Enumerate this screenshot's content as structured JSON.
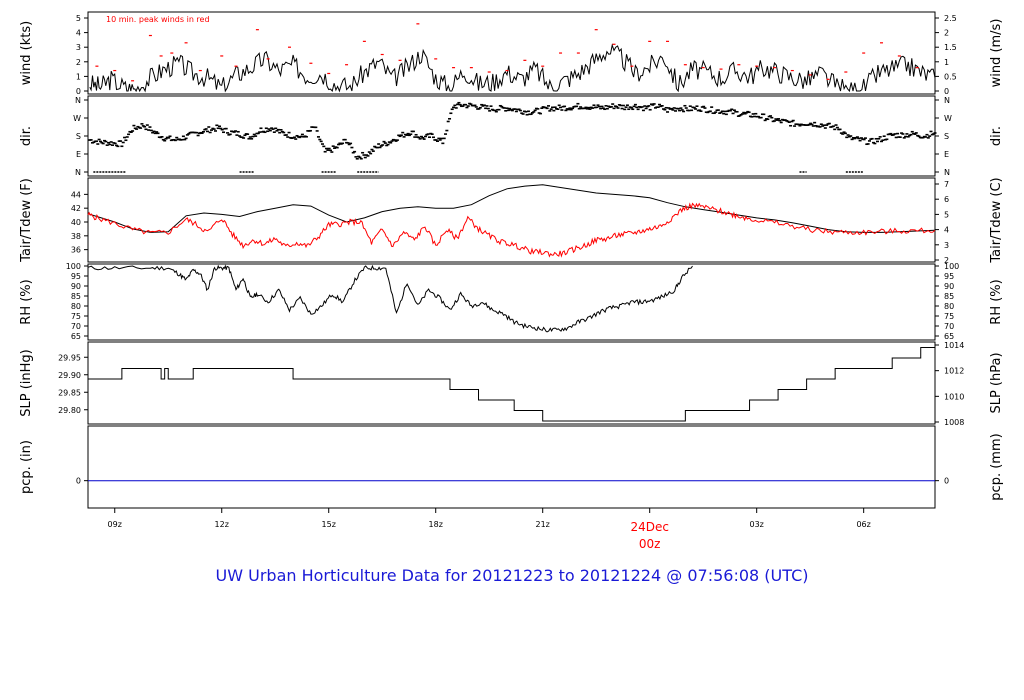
{
  "title": "UW Urban Horticulture Data for 20121223  to  20121224 @ 07:56:08  (UTC)",
  "colors": {
    "black": "#000000",
    "red": "#ff0000",
    "blue": "#0000cc",
    "title": "#1a1ad6"
  },
  "chart_data": {
    "type": "line",
    "x_axis": {
      "ticks": [
        "09z",
        "12z",
        "15z",
        "18z",
        "21z",
        "24Dec",
        "00z",
        "03z",
        "06z"
      ],
      "date_label": "24Dec",
      "date_sublabel": "00z",
      "range_hours": [
        8.25,
        32.0
      ]
    },
    "panels": [
      {
        "key": "wind",
        "ylabel_left": "wind (kts)",
        "ylabel_right": "wind (m/s)",
        "left_ticks": [
          "0",
          "1",
          "2",
          "3",
          "4",
          "5"
        ],
        "right_ticks": [
          "0",
          "0.5",
          "1",
          "1.5",
          "2",
          "2.5"
        ],
        "ylim": [
          0,
          5
        ],
        "annotation": "10 min. peak winds in red",
        "series": [
          {
            "color": "black",
            "x": [
              8.3,
              8.6,
              8.9,
              9.3,
              9.6,
              10.0,
              10.4,
              10.8,
              11.2,
              11.6,
              12.0,
              12.4,
              12.8,
              13.2,
              13.6,
              14.0,
              14.4,
              14.8,
              15.2,
              15.6,
              16.0,
              16.4,
              16.8,
              17.2,
              17.6,
              18.0,
              18.4,
              18.8,
              19.2,
              19.6,
              20.0,
              20.4,
              20.8,
              21.2,
              21.6,
              22.0,
              22.4,
              22.8,
              23.2,
              23.6,
              24.0,
              24.4,
              24.8,
              25.2,
              25.6,
              26.0,
              26.4,
              26.8,
              27.2,
              27.6,
              28.0,
              28.4,
              28.8,
              29.2,
              29.6,
              30.0,
              30.4,
              30.8,
              31.2,
              31.6,
              32.0
            ],
            "y": [
              0.5,
              0.3,
              0.8,
              0.2,
              0.1,
              0.9,
              1.5,
              1.9,
              1.2,
              0.9,
              0.2,
              1.1,
              1.6,
              2.2,
              1.4,
              1.8,
              1.0,
              1.2,
              0.4,
              0.3,
              1.3,
              2.0,
              0.8,
              1.6,
              2.6,
              0.9,
              0.2,
              1.4,
              0.5,
              0.6,
              1.3,
              0.8,
              1.5,
              0.3,
              0.7,
              1.2,
              2.0,
              2.8,
              2.3,
              1.2,
              1.7,
              2.4,
              0.4,
              1.5,
              1.3,
              0.9,
              1.4,
              1.0,
              1.6,
              1.3,
              0.9,
              0.7,
              1.2,
              0.4,
              0.0,
              0.2,
              1.2,
              1.5,
              1.8,
              1.3,
              0.9
            ]
          },
          {
            "color": "red",
            "label": "10 min. peak winds",
            "x": [
              8.5,
              9.0,
              9.5,
              10.0,
              10.3,
              10.6,
              11.0,
              11.4,
              12.0,
              12.4,
              13.0,
              13.3,
              13.9,
              14.5,
              15.0,
              15.5,
              16.0,
              16.5,
              17.0,
              17.5,
              18.0,
              18.5,
              19.0,
              19.5,
              20.0,
              20.5,
              21.0,
              21.5,
              22.0,
              22.5,
              23.0,
              23.5,
              24.0,
              24.5,
              25.0,
              25.5,
              26.0,
              26.5,
              27.0,
              27.5,
              28.0,
              28.5,
              29.0,
              29.5,
              30.0,
              30.5,
              31.0,
              31.5
            ],
            "y": [
              1.7,
              1.4,
              0.7,
              3.8,
              2.4,
              2.6,
              3.3,
              1.4,
              2.4,
              1.7,
              4.2,
              2.2,
              3.0,
              1.9,
              1.2,
              1.8,
              3.4,
              2.5,
              2.1,
              4.6,
              2.2,
              1.6,
              1.6,
              1.3,
              1.4,
              2.1,
              1.7,
              2.6,
              2.6,
              4.2,
              3.2,
              1.7,
              3.4,
              3.4,
              1.8,
              1.6,
              1.5,
              1.8,
              1.7,
              1.6,
              1.4,
              1.1,
              0.8,
              1.3,
              2.6,
              3.3,
              2.4,
              1.6
            ]
          }
        ]
      },
      {
        "key": "dir",
        "ylabel_left": "dir.",
        "ylabel_right": "dir.",
        "left_ticks": [
          "N",
          "E",
          "S",
          "W",
          "N"
        ],
        "right_ticks": [
          "N",
          "E",
          "S",
          "W",
          "N"
        ],
        "ylim": [
          0,
          360
        ],
        "series": [
          {
            "color": "black",
            "style": "points",
            "x": [
              8.3,
              8.6,
              8.9,
              9.2,
              9.5,
              9.8,
              10.1,
              10.4,
              10.7,
              11.0,
              11.3,
              11.6,
              11.9,
              12.2,
              12.5,
              12.8,
              13.1,
              13.4,
              13.7,
              14.0,
              14.3,
              14.6,
              14.9,
              15.2,
              15.5,
              15.8,
              16.1,
              16.4,
              16.7,
              17.0,
              17.3,
              17.6,
              17.9,
              18.2,
              18.5,
              18.8,
              19.1,
              19.4,
              19.7,
              20.0,
              20.3,
              20.6,
              20.9,
              21.2,
              21.5,
              21.8,
              22.1,
              22.4,
              22.7,
              23.0,
              23.3,
              23.6,
              23.9,
              24.2,
              24.5,
              24.8,
              25.1,
              25.4,
              25.7,
              26.0,
              26.3,
              26.6,
              26.9,
              27.2,
              27.5,
              27.8,
              28.1,
              28.4,
              28.7,
              29.0,
              29.3,
              29.6,
              29.9,
              30.2,
              30.5,
              30.8,
              31.1,
              31.4,
              31.7,
              32.0
            ],
            "y": [
              160,
              150,
              145,
              140,
              215,
              235,
              200,
              170,
              160,
              175,
              195,
              210,
              220,
              200,
              190,
              175,
              210,
              220,
              195,
              180,
              175,
              225,
              100,
              120,
              160,
              75,
              90,
              130,
              150,
              180,
              200,
              170,
              180,
              150,
              330,
              335,
              330,
              320,
              315,
              320,
              310,
              300,
              305,
              320,
              320,
              325,
              330,
              325,
              320,
              330,
              325,
              330,
              320,
              330,
              310,
              320,
              315,
              320,
              310,
              305,
              300,
              290,
              285,
              275,
              260,
              250,
              240,
              245,
              240,
              230,
              220,
              170,
              160,
              150,
              165,
              185,
              185,
              190,
              180,
              195
            ]
          }
        ]
      },
      {
        "key": "temp",
        "ylabel_left": "Tair/Tdew (F)",
        "ylabel_right": "Tair/Tdew (C)",
        "left_ticks": [
          "36",
          "38",
          "40",
          "42",
          "44"
        ],
        "right_ticks": [
          "2",
          "3",
          "4",
          "5",
          "6",
          "7"
        ],
        "ylim": [
          34.5,
          45.5
        ],
        "series": [
          {
            "color": "black",
            "name": "Tair",
            "x": [
              8.25,
              8.5,
              9.0,
              9.5,
              10.0,
              10.5,
              11.0,
              11.5,
              12.0,
              12.5,
              13.0,
              13.5,
              14.0,
              14.5,
              15.0,
              15.5,
              16.0,
              16.5,
              17.0,
              17.5,
              18.0,
              18.5,
              19.0,
              19.5,
              20.0,
              20.5,
              21.0,
              21.5,
              22.0,
              22.5,
              23.0,
              23.5,
              24.0,
              24.5,
              25.0,
              25.5,
              26.0,
              26.5,
              27.0,
              27.5,
              28.0,
              28.5,
              29.0,
              29.5,
              30.0,
              30.5,
              31.0,
              31.5,
              32.0
            ],
            "y": [
              41.2,
              40.8,
              40.0,
              39.0,
              38.5,
              38.6,
              40.9,
              41.3,
              41.1,
              40.8,
              41.5,
              42.0,
              42.5,
              42.3,
              41.0,
              40.0,
              40.6,
              41.5,
              42.0,
              42.2,
              42.0,
              42.0,
              42.5,
              43.8,
              44.8,
              45.2,
              45.4,
              45.0,
              44.6,
              44.2,
              44.0,
              43.8,
              43.5,
              42.8,
              42.2,
              41.8,
              41.4,
              41.0,
              40.6,
              40.3,
              39.9,
              39.4,
              38.9,
              38.6,
              38.5,
              38.5,
              38.6,
              38.7,
              38.8
            ]
          },
          {
            "color": "red",
            "name": "Tdew",
            "x": [
              8.25,
              8.5,
              9.0,
              9.5,
              10.0,
              10.5,
              11.0,
              11.3,
              11.6,
              12.0,
              12.3,
              12.6,
              12.9,
              13.2,
              13.5,
              13.8,
              14.1,
              14.4,
              14.7,
              15.0,
              15.3,
              15.6,
              15.9,
              16.2,
              16.5,
              16.8,
              17.1,
              17.4,
              17.7,
              18.0,
              18.3,
              18.6,
              18.9,
              19.2,
              19.5,
              19.8,
              20.1,
              20.4,
              20.7,
              21.0,
              21.3,
              21.6,
              21.9,
              22.2,
              22.5,
              22.8,
              23.1,
              23.4,
              23.7,
              24.0,
              24.3,
              24.6,
              24.9,
              25.2,
              25.5,
              25.8,
              26.1,
              26.4,
              26.7,
              27.0,
              27.5,
              28.0,
              28.5,
              29.0,
              29.5,
              30.0,
              30.5,
              31.0,
              31.5,
              32.0
            ],
            "y": [
              41.1,
              40.6,
              39.8,
              38.9,
              38.4,
              38.5,
              40.4,
              39.6,
              38.5,
              40.6,
              38.2,
              36.6,
              37.4,
              36.8,
              37.6,
              36.4,
              37.0,
              36.5,
              37.8,
              39.6,
              39.7,
              40.0,
              40.0,
              37.0,
              38.9,
              36.5,
              38.5,
              37.4,
              39.4,
              36.5,
              38.9,
              37.6,
              40.6,
              39.0,
              38.0,
              37.2,
              36.8,
              36.3,
              35.7,
              35.6,
              35.3,
              35.5,
              36.1,
              36.6,
              37.4,
              37.6,
              38.1,
              38.3,
              38.6,
              39.0,
              39.4,
              40.5,
              41.8,
              42.4,
              42.2,
              41.8,
              41.4,
              41.0,
              40.6,
              40.3,
              39.9,
              39.4,
              38.9,
              38.6,
              38.5,
              38.5,
              38.6,
              38.7,
              38.7,
              38.8
            ]
          }
        ]
      },
      {
        "key": "rh",
        "ylabel_left": "RH (%)",
        "ylabel_right": "RH (%)",
        "left_ticks": [
          "65",
          "70",
          "75",
          "80",
          "85",
          "90",
          "95",
          "100"
        ],
        "right_ticks": [
          "65",
          "70",
          "75",
          "80",
          "85",
          "90",
          "95",
          "100"
        ],
        "ylim": [
          65,
          100
        ],
        "series": [
          {
            "color": "black",
            "x": [
              8.25,
              9.0,
              10.0,
              10.5,
              10.8,
              11.0,
              11.2,
              11.4,
              11.6,
              11.8,
              12.0,
              12.2,
              12.4,
              12.6,
              12.8,
              13.0,
              13.3,
              13.6,
              13.9,
              14.2,
              14.5,
              14.8,
              15.1,
              15.4,
              15.7,
              16.0,
              16.3,
              16.6,
              16.9,
              17.2,
              17.5,
              17.8,
              18.1,
              18.4,
              18.7,
              19.0,
              19.3,
              19.6,
              19.9,
              20.2,
              20.5,
              20.8,
              21.1,
              21.4,
              21.7,
              22.0,
              22.3,
              22.6,
              22.9,
              23.2,
              23.5,
              23.8,
              24.1,
              24.4,
              24.7,
              24.9,
              25.2,
              26.0,
              28.0,
              30.0,
              32.0
            ],
            "y": [
              99,
              99,
              99,
              99,
              96,
              93,
              98,
              96,
              88,
              99,
              99,
              99,
              88,
              94,
              84,
              86,
              82,
              88,
              78,
              84,
              76,
              80,
              86,
              82,
              92,
              99,
              99,
              99,
              76,
              92,
              80,
              88,
              84,
              78,
              86,
              80,
              82,
              78,
              76,
              72,
              70,
              69,
              68,
              68,
              69,
              72,
              74,
              77,
              79,
              80,
              82,
              82,
              83,
              85,
              88,
              94,
              100,
              100,
              100,
              100,
              100
            ],
            "missing_after_hour": 25.2
          }
        ]
      },
      {
        "key": "slp",
        "ylabel_left": "SLP (inHg)",
        "ylabel_right": "SLP (hPa)",
        "left_ticks": [
          "29.80",
          "29.85",
          "29.90",
          "29.95"
        ],
        "right_ticks": [
          "1008",
          "1010",
          "1012",
          "1014"
        ],
        "ylim": [
          29.765,
          29.985
        ],
        "series": [
          {
            "color": "black",
            "style": "step",
            "x": [
              8.25,
              9.0,
              9.2,
              9.3,
              10.3,
              10.4,
              10.5,
              11.2,
              12.0,
              14.0,
              16.0,
              17.8,
              18.4,
              19.2,
              20.2,
              21.0,
              22.0,
              24.0,
              25.0,
              26.0,
              26.8,
              27.6,
              28.4,
              29.2,
              30.0,
              30.8,
              31.6,
              32.0
            ],
            "y": [
              29.888,
              29.888,
              29.918,
              29.918,
              29.888,
              29.918,
              29.888,
              29.918,
              29.918,
              29.888,
              29.888,
              29.888,
              29.858,
              29.828,
              29.798,
              29.768,
              29.768,
              29.768,
              29.798,
              29.798,
              29.828,
              29.858,
              29.888,
              29.918,
              29.918,
              29.948,
              29.978,
              29.978
            ]
          }
        ]
      },
      {
        "key": "pcp",
        "ylabel_left": "pcp. (in)",
        "ylabel_right": "pcp. (mm)",
        "left_ticks": [
          "0"
        ],
        "right_ticks": [
          "0"
        ],
        "ylim": [
          -0.5,
          1.0
        ],
        "series": [
          {
            "color": "blue",
            "x": [
              8.25,
              32.0
            ],
            "y": [
              0,
              0
            ]
          }
        ]
      }
    ]
  }
}
